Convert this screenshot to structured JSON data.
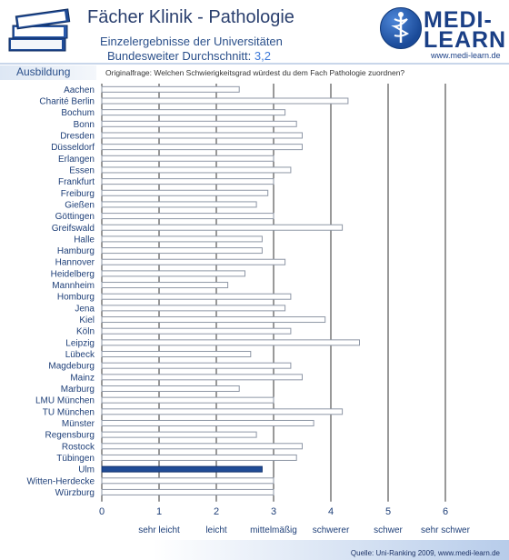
{
  "header": {
    "title": "Fächer Klinik - Pathologie",
    "subtitle_line1": "Einzelergebnisse der Universitäten",
    "subtitle_line2_prefix": "Bundesweiter Durchschnitt:",
    "subtitle_line2_value": "3,2"
  },
  "brand": {
    "name_line1": "MEDI-",
    "name_line2": "LEARN",
    "url": "www.medi-learn.de"
  },
  "section_label": "Ausbildung",
  "question": "Originalfrage: Welchen Schwierigkeitsgrad würdest du dem Fach Pathologie zuordnen?",
  "source": "Quelle: Uni-Ranking 2009, www.medi-learn.de",
  "colors": {
    "bar_fill": "#ffffff",
    "bar_stroke": "#8e97a6",
    "highlight_fill": "#1f4b96",
    "gridline": "#333333",
    "text": "#1e3f78"
  },
  "chart_data": {
    "type": "bar",
    "orientation": "horizontal",
    "categories": [
      "Aachen",
      "Charité Berlin",
      "Bochum",
      "Bonn",
      "Dresden",
      "Düsseldorf",
      "Erlangen",
      "Essen",
      "Frankfurt",
      "Freiburg",
      "Gießen",
      "Göttingen",
      "Greifswald",
      "Halle",
      "Hamburg",
      "Hannover",
      "Heidelberg",
      "Mannheim",
      "Homburg",
      "Jena",
      "Kiel",
      "Köln",
      "Leipzig",
      "Lübeck",
      "Magdeburg",
      "Mainz",
      "Marburg",
      "LMU München",
      "TU München",
      "Münster",
      "Regensburg",
      "Rostock",
      "Tübingen",
      "Ulm",
      "Witten-Herdecke",
      "Würzburg"
    ],
    "values": [
      2.4,
      4.3,
      3.2,
      3.4,
      3.5,
      3.5,
      3.0,
      3.3,
      3.0,
      2.9,
      2.7,
      3.0,
      4.2,
      2.8,
      2.8,
      3.2,
      2.5,
      2.2,
      3.3,
      3.2,
      3.9,
      3.3,
      4.5,
      2.6,
      3.3,
      3.5,
      2.4,
      3.0,
      4.2,
      3.7,
      2.7,
      3.5,
      3.4,
      2.8,
      3.0,
      3.0
    ],
    "highlight": "Ulm",
    "xlim": [
      0,
      6
    ],
    "xticks": [
      "0",
      "1",
      "2",
      "3",
      "4",
      "5",
      "6"
    ],
    "scale_labels": [
      "sehr leicht",
      "leicht",
      "mittelmäßig",
      "schwerer",
      "schwer",
      "sehr schwer"
    ],
    "grid": true
  }
}
